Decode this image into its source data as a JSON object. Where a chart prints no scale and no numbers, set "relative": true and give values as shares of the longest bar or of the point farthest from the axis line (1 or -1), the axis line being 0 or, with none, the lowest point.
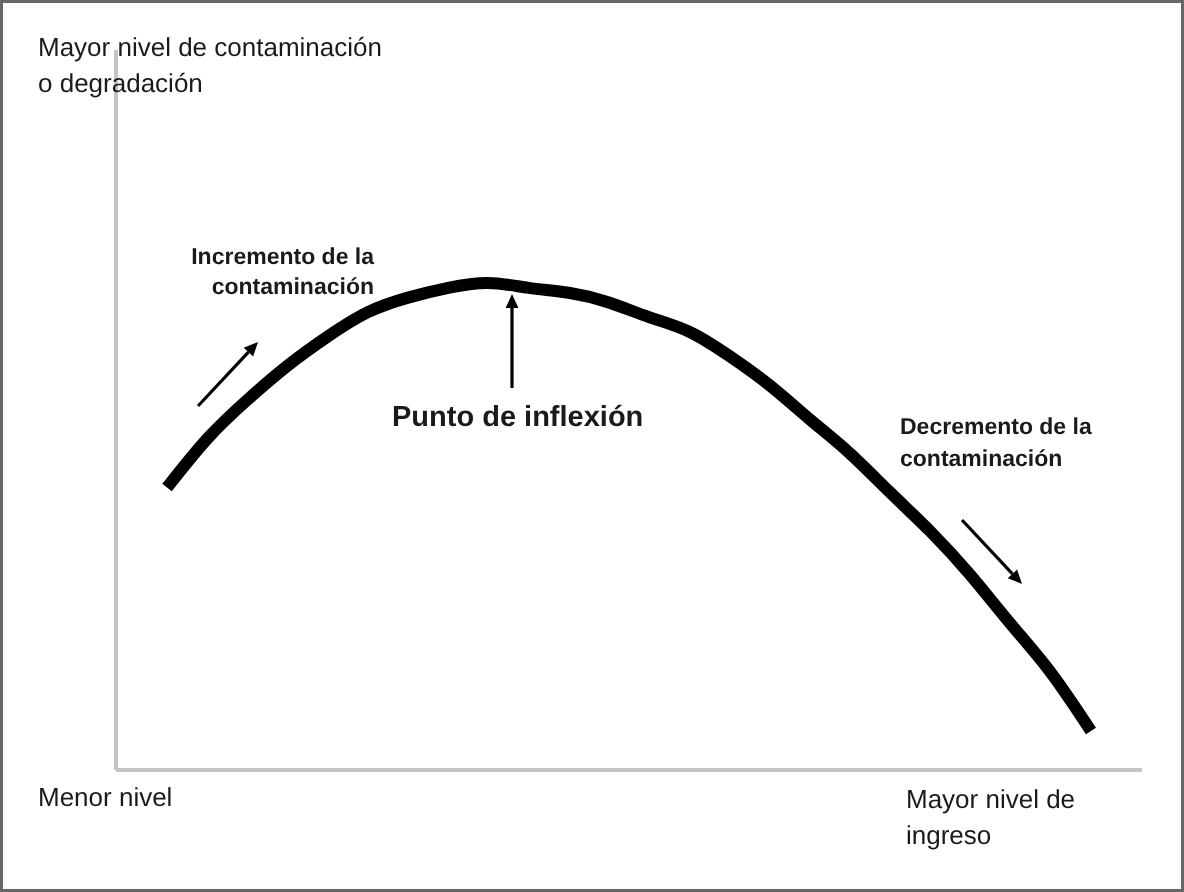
{
  "chart_data": {
    "type": "line",
    "relative": true,
    "xlabel": "Mayor nivel de\ningreso",
    "annotations": [
      "Mayor nivel de contaminación\no degradación",
      "Incremento de la\ncontaminación",
      "Punto de inflexión",
      "Decremento de la\ncontaminación",
      "Menor nivel"
    ],
    "categories": [
      null,
      null,
      null,
      null,
      null,
      null,
      null,
      null,
      null,
      null,
      null,
      null,
      null,
      null,
      null,
      null,
      null,
      null,
      null,
      null,
      null,
      null,
      null,
      null
    ],
    "values": [
      0.58,
      0.68,
      0.76,
      0.83,
      0.89,
      0.94,
      0.97,
      0.99,
      1.0,
      0.99,
      0.98,
      0.96,
      0.93,
      0.9,
      0.85,
      0.79,
      0.72,
      0.65,
      0.57,
      0.49,
      0.4,
      0.3,
      0.2,
      0.08
    ],
    "color": "#000000",
    "line_style": "solid"
  }
}
